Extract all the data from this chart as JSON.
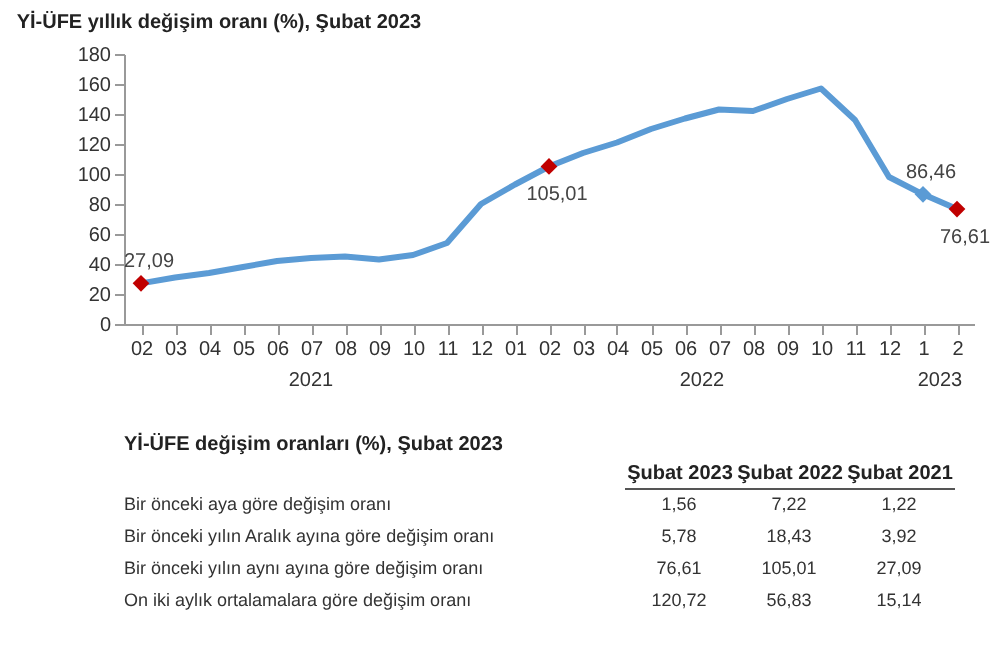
{
  "chart_data": [
    {
      "type": "line",
      "title": "Yİ-ÜFE yıllık değişim oranı (%), Şubat 2023",
      "categories": [
        "02",
        "03",
        "04",
        "05",
        "06",
        "07",
        "08",
        "09",
        "10",
        "11",
        "12",
        "01",
        "02",
        "03",
        "04",
        "05",
        "06",
        "07",
        "08",
        "09",
        "10",
        "11",
        "12",
        "1",
        "2"
      ],
      "series": [
        {
          "color": "#5b9bd5",
          "values": [
            27.09,
            31,
            34,
            38,
            42,
            44,
            45,
            43,
            46,
            54,
            80,
            93,
            105.01,
            114,
            121,
            130,
            137,
            143,
            142,
            150,
            157,
            136,
            98,
            86.46,
            76.61
          ],
          "value_labels": [
            "27,09",
            null,
            null,
            null,
            null,
            null,
            null,
            null,
            null,
            null,
            null,
            null,
            "105,01",
            null,
            null,
            null,
            null,
            null,
            null,
            null,
            null,
            null,
            null,
            "86,46",
            "76,61"
          ],
          "colors": [
            "#c00000",
            null,
            null,
            null,
            null,
            null,
            null,
            null,
            null,
            null,
            null,
            null,
            "#c00000",
            null,
            null,
            null,
            null,
            null,
            null,
            null,
            null,
            null,
            null,
            "#5b9bd5",
            "#c00000"
          ]
        }
      ],
      "ylim": [
        0,
        180
      ],
      "yticks": [
        0,
        20,
        40,
        60,
        80,
        100,
        120,
        140,
        160,
        180
      ],
      "grid": false,
      "annotations": [
        "2021",
        "2022",
        "2023"
      ]
    },
    {
      "type": "other",
      "title": "Yİ-ÜFE değişim oranları (%), Şubat 2023",
      "categories": [
        "Şubat 2023",
        "Şubat 2022",
        "Şubat 2021"
      ],
      "y_categories": [
        "Bir önceki aya göre değişim oranı",
        "Bir önceki yılın Aralık ayına göre değişim oranı",
        "Bir önceki yılın aynı ayına göre değişim oranı",
        "On iki aylık ortalamalara göre değişim oranı"
      ],
      "cell_labels": [
        [
          "1,56",
          "7,22",
          "1,22"
        ],
        [
          "5,78",
          "18,43",
          "3,92"
        ],
        [
          "76,61",
          "105,01",
          "27,09"
        ],
        [
          "120,72",
          "56,83",
          "15,14"
        ]
      ]
    }
  ]
}
